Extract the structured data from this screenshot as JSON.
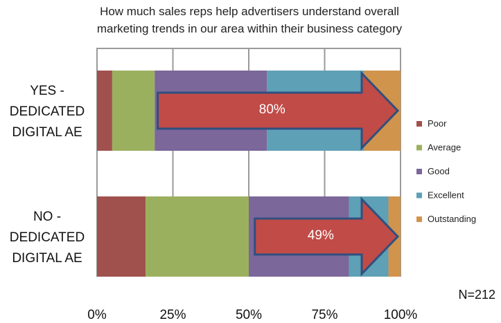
{
  "chart_data": {
    "type": "bar",
    "orientation": "horizontal",
    "stacked": true,
    "title_lines": [
      "How much sales reps help advertisers understand overall",
      "marketing trends in our area within their business category"
    ],
    "categories": [
      [
        "YES -",
        "DEDICATED",
        "DIGITAL AE"
      ],
      [
        "NO -",
        "DEDICATED",
        "DIGITAL AE"
      ]
    ],
    "series": [
      {
        "name": "Poor",
        "color": "#a0514e",
        "values": [
          5,
          16
        ]
      },
      {
        "name": "Average",
        "color": "#9bb05e",
        "values": [
          14,
          34
        ]
      },
      {
        "name": "Good",
        "color": "#7b679a",
        "values": [
          37,
          33
        ]
      },
      {
        "name": "Excellent",
        "color": "#5ea0b6",
        "values": [
          32,
          13
        ]
      },
      {
        "name": "Outstanding",
        "color": "#d0944d",
        "values": [
          12,
          4
        ]
      }
    ],
    "xlim": [
      0,
      100
    ],
    "xticks": [
      "0%",
      "25%",
      "50%",
      "75%",
      "100%"
    ],
    "grid": true,
    "legend_position": "right",
    "annotations": [
      {
        "text": "80%",
        "category_index": 0,
        "from": 20,
        "to": 100,
        "color": "#c14b47"
      },
      {
        "text": "49%",
        "category_index": 1,
        "from": 52,
        "to": 100,
        "color": "#c14b47"
      }
    ],
    "note": "N=212"
  }
}
